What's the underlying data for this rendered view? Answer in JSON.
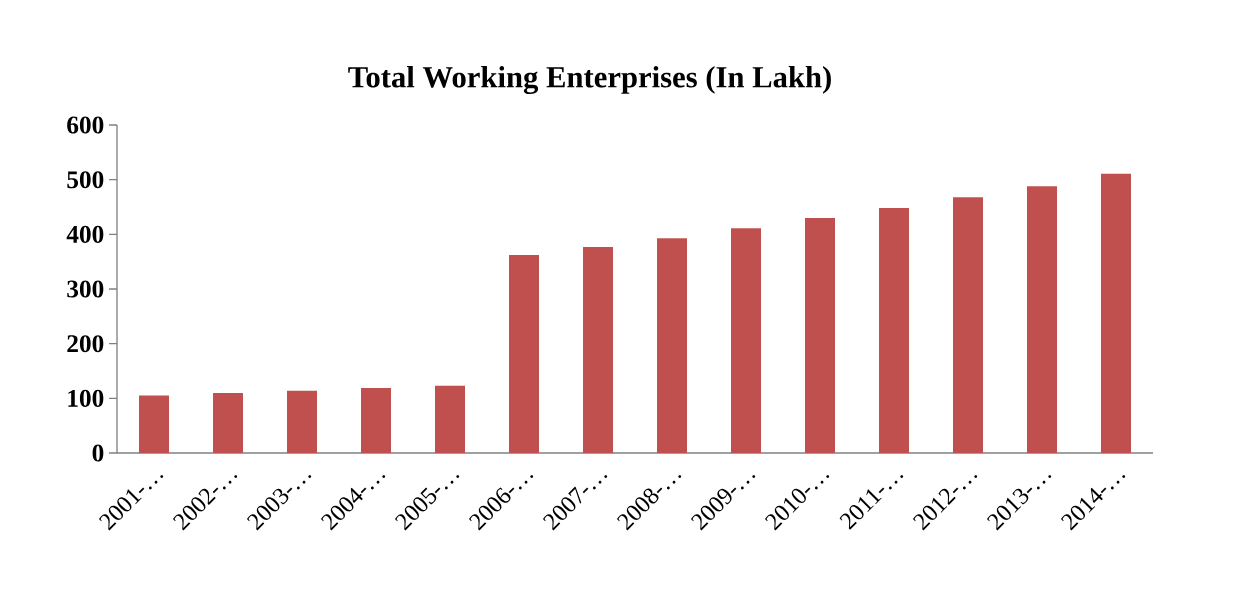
{
  "chart_data": {
    "type": "bar",
    "title": "Total Working Enterprises (In Lakh)",
    "categories": [
      "2001-…",
      "2002-…",
      "2003-…",
      "2004-…",
      "2005-…",
      "2006-…",
      "2007-…",
      "2008-…",
      "2009-…",
      "2010-…",
      "2011-…",
      "2012-…",
      "2013-…",
      "2014-…"
    ],
    "values": [
      105,
      110,
      114,
      119,
      123,
      362,
      377,
      393,
      411,
      430,
      448,
      468,
      488,
      511
    ],
    "color": "#c0504d",
    "ylim": [
      0,
      600
    ],
    "yticks": [
      0,
      100,
      200,
      300,
      400,
      500,
      600
    ]
  }
}
